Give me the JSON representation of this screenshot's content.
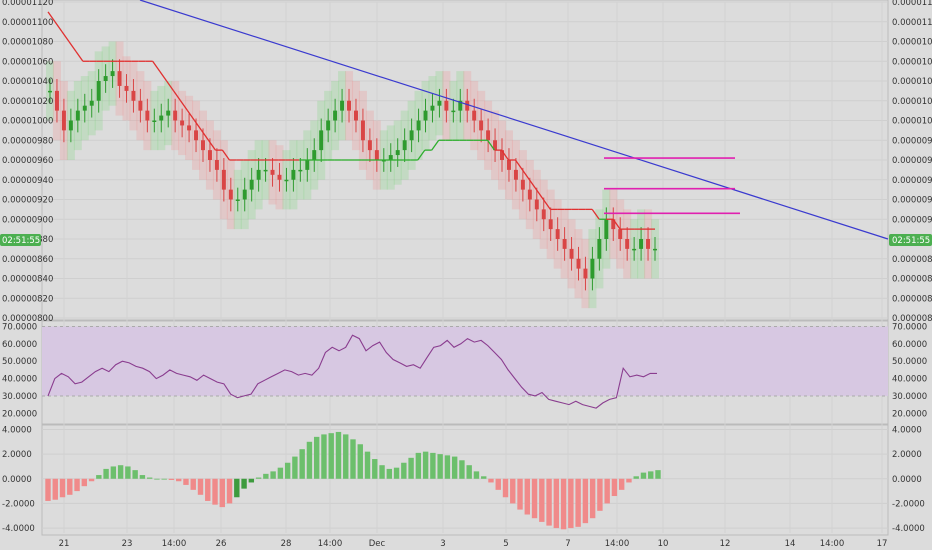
{
  "chart_data": [
    {
      "type": "candlestick",
      "panel": "price",
      "ylim": [
        8e-06,
        1.12e-05
      ],
      "yticks_left": [
        "0.00001120",
        "0.00001100",
        "0.00001080",
        "0.00001060",
        "0.00001040",
        "0.00001020",
        "0.00001000",
        "0.00000980",
        "0.00000960",
        "0.00000940",
        "0.00000920",
        "0.00000900",
        "0.00000880",
        "0.00000860",
        "0.00000840",
        "0.00000820",
        "0.00000800"
      ],
      "yticks_right": [
        "0.00001120",
        "0.00001100",
        "0.00001080",
        "0.00001060",
        "0.00001040",
        "0.00001020",
        "0.00001000",
        "0.00000980",
        "0.00000960",
        "0.00000940",
        "0.00000920",
        "0.00000900",
        "0.00000880",
        "0.00000860",
        "0.00000840",
        "0.00000820",
        "0.00000800"
      ],
      "price_tag_left": "02:51:55",
      "price_tag_right": "02:51:55",
      "colors": {
        "up": "#2e9b2e",
        "down": "#d94545",
        "trendline": "#3a3acf",
        "sr_line": "#e020b0",
        "ma_up": "#2eae2e",
        "ma_down": "#e03030"
      },
      "trendline": {
        "start": [
          0,
          1.13e-05
        ],
        "end": [
          30.5,
          8.8e-06
        ]
      },
      "hlines": [
        {
          "from": 19.6,
          "to": 23.8,
          "value": 9.62e-06
        },
        {
          "from": 19.6,
          "to": 23.8,
          "value": 9.31e-06
        },
        {
          "from": 19.6,
          "to": 24.0,
          "value": 9.06e-06
        }
      ],
      "close_series": [
        1.03e-05,
        1.01e-05,
        9.9e-06,
        1e-05,
        1.01e-05,
        1.015e-05,
        1.02e-05,
        1.04e-05,
        1.045e-05,
        1.05e-05,
        1.035e-05,
        1.03e-05,
        1.02e-05,
        1.01e-05,
        1e-05,
        1e-05,
        1.005e-05,
        1.01e-05,
        1e-05,
        9.95e-06,
        9.9e-06,
        9.8e-06,
        9.7e-06,
        9.6e-06,
        9.5e-06,
        9.3e-06,
        9.2e-06,
        9.2e-06,
        9.3e-06,
        9.4e-06,
        9.5e-06,
        9.5e-06,
        9.45e-06,
        9.4e-06,
        9.4e-06,
        9.5e-06,
        9.5e-06,
        9.6e-06,
        9.7e-06,
        9.9e-06,
        1e-05,
        1.01e-05,
        1.02e-05,
        1.01e-05,
        1e-05,
        9.8e-06,
        9.7e-06,
        9.6e-06,
        9.6e-06,
        9.65e-06,
        9.7e-06,
        9.8e-06,
        9.9e-06,
        1e-05,
        1.01e-05,
        1.015e-05,
        1.02e-05,
        1.01e-05,
        1.01e-05,
        1.02e-05,
        1.01e-05,
        1e-05,
        9.9e-06,
        9.8e-06,
        9.7e-06,
        9.6e-06,
        9.5e-06,
        9.4e-06,
        9.3e-06,
        9.2e-06,
        9.1e-06,
        9e-06,
        8.9e-06,
        8.8e-06,
        8.7e-06,
        8.6e-06,
        8.5e-06,
        8.4e-06,
        8.6e-06,
        8.8e-06,
        9e-06,
        8.9e-06,
        8.8e-06,
        8.7e-06,
        8.7e-06,
        8.8e-06,
        8.7e-06,
        8.7e-06
      ],
      "ema_series": [
        1.11e-05,
        1.1e-05,
        1.09e-05,
        1.08e-05,
        1.07e-05,
        1.06e-05,
        1.06e-05,
        1.06e-05,
        1.06e-05,
        1.06e-05,
        1.06e-05,
        1.06e-05,
        1.06e-05,
        1.06e-05,
        1.06e-05,
        1.06e-05,
        1.05e-05,
        1.04e-05,
        1.03e-05,
        1.02e-05,
        1.01e-05,
        1e-05,
        9.9e-06,
        9.8e-06,
        9.7e-06,
        9.7e-06,
        9.6e-06,
        9.6e-06,
        9.6e-06,
        9.6e-06,
        9.6e-06,
        9.6e-06,
        9.6e-06,
        9.6e-06,
        9.6e-06,
        9.6e-06,
        9.6e-06,
        9.6e-06,
        9.6e-06,
        9.6e-06,
        9.6e-06,
        9.6e-06,
        9.6e-06,
        9.6e-06,
        9.6e-06,
        9.6e-06,
        9.6e-06,
        9.6e-06,
        9.6e-06,
        9.6e-06,
        9.6e-06,
        9.6e-06,
        9.6e-06,
        9.6e-06,
        9.7e-06,
        9.7e-06,
        9.8e-06,
        9.8e-06,
        9.8e-06,
        9.8e-06,
        9.8e-06,
        9.8e-06,
        9.8e-06,
        9.8e-06,
        9.7e-06,
        9.7e-06,
        9.6e-06,
        9.6e-06,
        9.5e-06,
        9.4e-06,
        9.3e-06,
        9.2e-06,
        9.1e-06,
        9.1e-06,
        9.1e-06,
        9.1e-06,
        9.1e-06,
        9.1e-06,
        9.1e-06,
        9e-06,
        9e-06,
        9e-06,
        8.9e-06,
        8.9e-06,
        8.9e-06,
        8.9e-06,
        8.9e-06,
        8.9e-06
      ],
      "ema_colors_change_at": [
        5,
        25,
        30,
        53,
        62,
        80
      ]
    },
    {
      "type": "line",
      "panel": "rsi",
      "ylim": [
        15,
        72
      ],
      "band": [
        30,
        70
      ],
      "yticks_left": [
        "70.0000",
        "60.0000",
        "50.0000",
        "40.0000",
        "30.0000",
        "20.0000"
      ],
      "yticks_right": [
        "70.0000",
        "60.0000",
        "50.0000",
        "40.0000",
        "30.0000",
        "20.0000"
      ],
      "values": [
        30,
        40,
        43,
        41,
        37,
        38,
        41,
        44,
        46,
        44,
        48,
        50,
        49,
        47,
        46,
        44,
        40,
        42,
        45,
        43,
        42,
        41,
        39,
        42,
        40,
        38,
        37,
        31,
        29,
        30,
        31,
        37,
        39,
        41,
        43,
        45,
        44,
        42,
        43,
        42,
        46,
        55,
        58,
        56,
        58,
        65,
        63,
        56,
        59,
        61,
        55,
        51,
        49,
        47,
        48,
        46,
        52,
        58,
        59,
        62,
        58,
        60,
        63,
        61,
        62,
        59,
        55,
        51,
        45,
        40,
        35,
        31,
        30,
        32,
        28,
        27,
        26,
        25,
        27,
        25,
        24,
        23,
        26,
        28,
        29,
        46,
        41,
        42,
        41,
        43,
        43
      ]
    },
    {
      "type": "bar",
      "panel": "histogram",
      "ylim": [
        -4.4,
        4.2
      ],
      "yticks_left": [
        "4.0000",
        "2.0000",
        "0.0000",
        "-2.0000",
        "-4.0000"
      ],
      "yticks_right": [
        "4.0000",
        "2.0000",
        "0.0000",
        "-2.0000",
        "-4.0000"
      ],
      "values": [
        -1.8,
        -1.7,
        -1.5,
        -1.3,
        -1.0,
        -0.6,
        -0.2,
        0.3,
        0.8,
        1.0,
        1.1,
        1.0,
        0.7,
        0.3,
        0.1,
        0,
        0,
        -0.1,
        -0.2,
        -0.5,
        -0.9,
        -1.3,
        -1.8,
        -2.1,
        -2.3,
        -2.0,
        -1.5,
        -0.8,
        -0.3,
        0.1,
        0.4,
        0.6,
        0.9,
        1.3,
        1.8,
        2.4,
        3.0,
        3.4,
        3.6,
        3.7,
        3.8,
        3.6,
        3.2,
        2.8,
        2.2,
        1.6,
        1.1,
        0.8,
        0.9,
        1.3,
        1.7,
        2.1,
        2.2,
        2.1,
        2.0,
        1.9,
        1.8,
        1.5,
        1.1,
        0.6,
        0.2,
        -0.3,
        -0.9,
        -1.5,
        -2.0,
        -2.5,
        -2.9,
        -3.2,
        -3.5,
        -3.8,
        -4.0,
        -4.1,
        -4.0,
        -3.9,
        -3.6,
        -3.2,
        -2.6,
        -2.0,
        -1.4,
        -0.9,
        -0.3,
        0.2,
        0.5,
        0.6,
        0.7
      ]
    }
  ],
  "x_axis": {
    "labels": [
      "21",
      "23",
      "14:00",
      "26",
      "28",
      "14:00",
      "Dec",
      "3",
      "5",
      "7",
      "14:00",
      "10",
      "12",
      "14",
      "14:00",
      "17"
    ]
  }
}
